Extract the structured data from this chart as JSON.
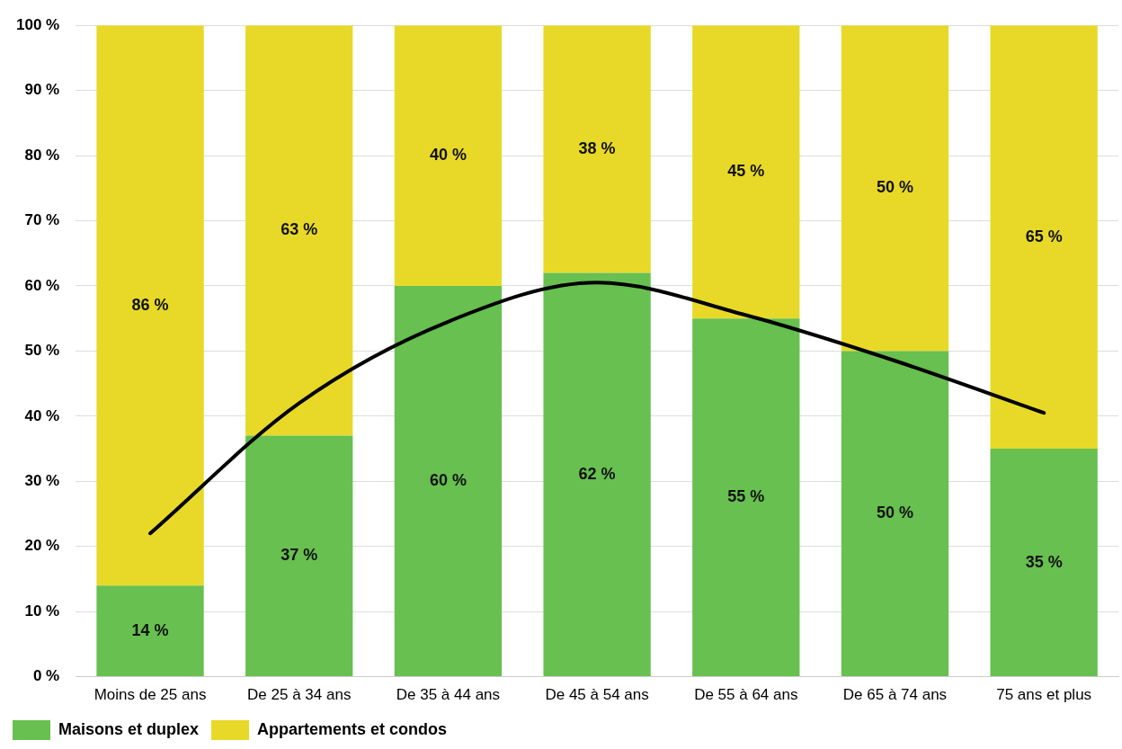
{
  "chart_data": {
    "type": "bar",
    "stacked": true,
    "categories": [
      "Moins de 25 ans",
      "De 25 à 34 ans",
      "De 35 à 44 ans",
      "De 45 à 54 ans",
      "De 55 à 64 ans",
      "De 65 à 74 ans",
      "75 ans et plus"
    ],
    "series": [
      {
        "name": "Maisons et duplex",
        "color": "#67c04f",
        "values": [
          14,
          37,
          60,
          62,
          55,
          50,
          35
        ],
        "value_labels": [
          "14 %",
          "37 %",
          "60 %",
          "62 %",
          "55 %",
          "50 %",
          "35 %"
        ]
      },
      {
        "name": "Appartements et condos",
        "color": "#e8d928",
        "values": [
          86,
          63,
          40,
          38,
          45,
          50,
          65
        ],
        "value_labels": [
          "86 %",
          "63 %",
          "40 %",
          "38 %",
          "45 %",
          "50 %",
          "65 %"
        ]
      },
      {
        "type": "line",
        "color": "#000000",
        "values": [
          22,
          42,
          54.5,
          60.5,
          55.5,
          48.5,
          40.5
        ]
      }
    ],
    "ylim": [
      0,
      100
    ],
    "yticks": [
      {
        "value": 0,
        "label": "0 %"
      },
      {
        "value": 10,
        "label": "10 %"
      },
      {
        "value": 20,
        "label": "20 %"
      },
      {
        "value": 30,
        "label": "30 %"
      },
      {
        "value": 40,
        "label": "40 %"
      },
      {
        "value": 50,
        "label": "50 %"
      },
      {
        "value": 60,
        "label": "60 %"
      },
      {
        "value": 70,
        "label": "70 %"
      },
      {
        "value": 80,
        "label": "80 %"
      },
      {
        "value": 90,
        "label": "90 %"
      },
      {
        "value": 100,
        "label": "100 %"
      }
    ],
    "grid": "y",
    "legend": "bottom left",
    "marker": "none"
  }
}
